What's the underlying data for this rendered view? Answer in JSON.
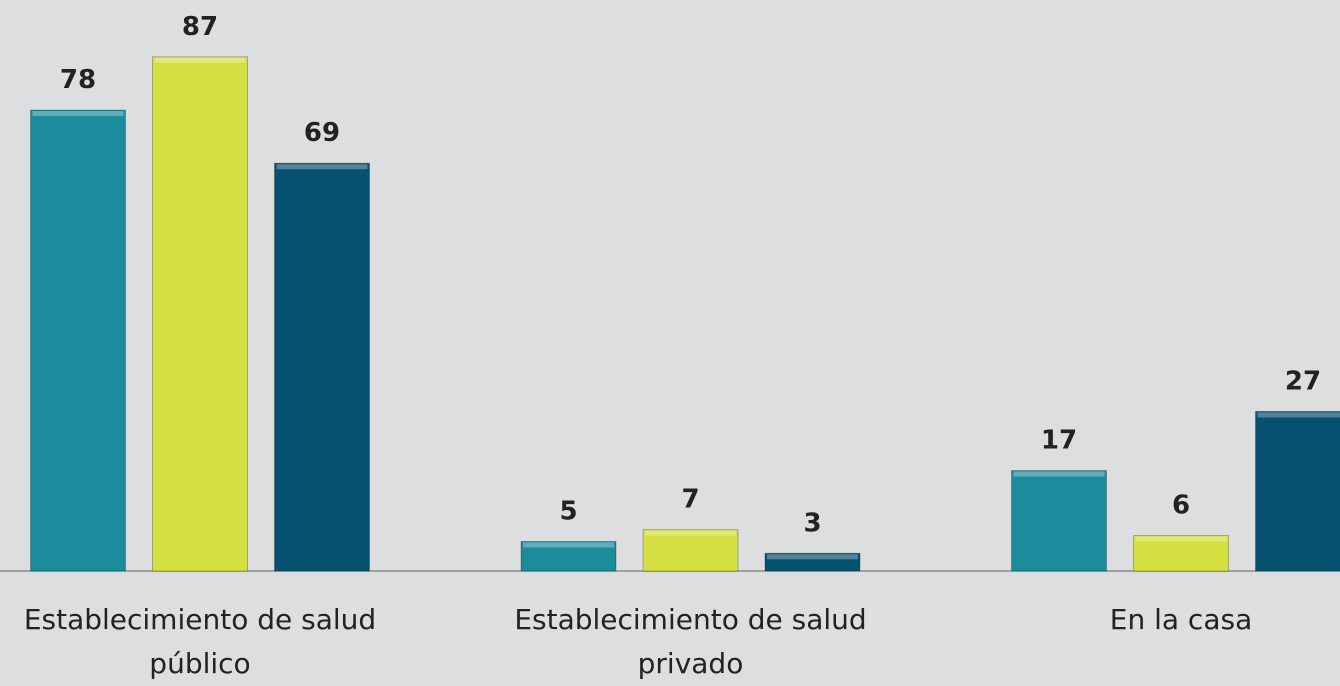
{
  "chart_data": {
    "type": "bar",
    "categories": [
      "Establecimiento de salud público",
      "Establecimiento de salud privado",
      "En la casa"
    ],
    "series": [
      {
        "color": "#1a8c9c",
        "values": [
          78,
          5,
          17
        ]
      },
      {
        "color": "#d4e040",
        "values": [
          87,
          7,
          6
        ]
      },
      {
        "color": "#07506f",
        "values": [
          69,
          3,
          27
        ]
      }
    ]
  }
}
